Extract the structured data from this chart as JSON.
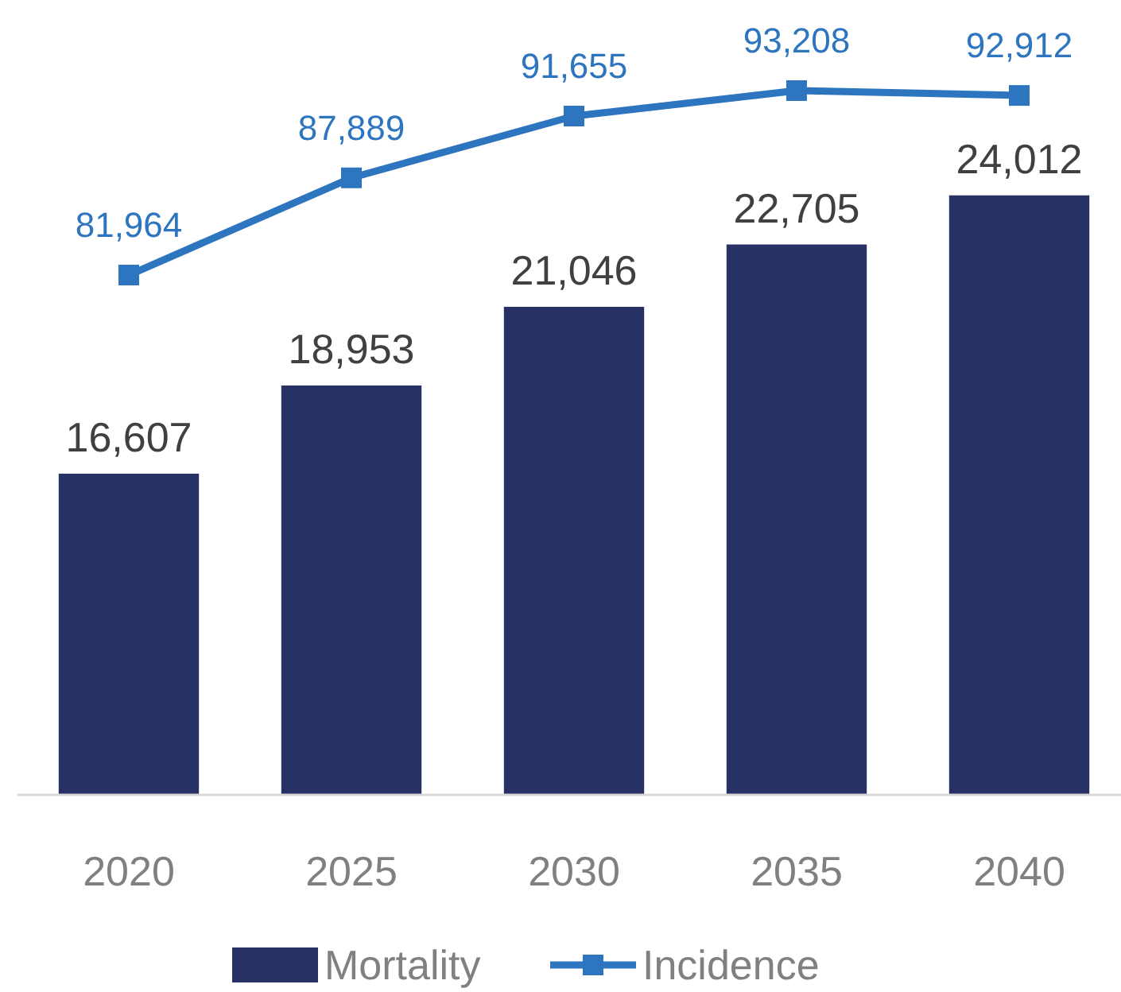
{
  "chart_data": {
    "type": "bar",
    "categories": [
      "2020",
      "2025",
      "2030",
      "2035",
      "2040"
    ],
    "series": [
      {
        "name": "Mortality",
        "color": "#283163",
        "values": [
          16607,
          18953,
          21046,
          22705,
          24012
        ],
        "value_labels": [
          "16,607",
          "18,953",
          "21,046",
          "22,705",
          "24,012"
        ]
      },
      {
        "name": "Incidence",
        "type": "line",
        "axis": "y2",
        "color": "#2e75c0",
        "marker": "square",
        "values": [
          81964,
          87889,
          91655,
          93208,
          92912
        ],
        "value_labels": [
          "81,964",
          "87,889",
          "91,655",
          "93,208",
          "92,912"
        ]
      }
    ],
    "ylim": [
      8060,
      29210
    ],
    "y2lim": [
      50280,
      98730
    ],
    "legend": "bottom"
  }
}
